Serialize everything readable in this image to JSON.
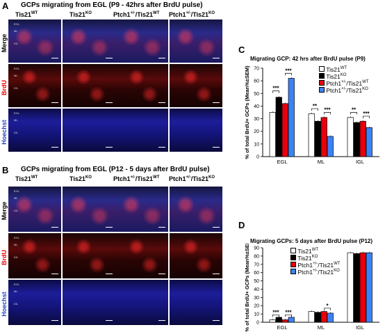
{
  "panel_a": {
    "letter": "A",
    "title": "GCPs migrating from EGL (P9 - 42hrs after BrdU pulse)",
    "columns": [
      {
        "base": "Tis21",
        "sup": "WT"
      },
      {
        "base": "Tis21",
        "sup": "KO"
      },
      {
        "base": "Ptch1",
        "sup": "+/-",
        "base2": "/Tis21",
        "sup2": "WT"
      },
      {
        "base": "Ptch1",
        "sup": "+/-",
        "base2": "/Tis21",
        "sup2": "KO"
      }
    ],
    "rows": [
      "Merge",
      "BrdU",
      "Hoechst"
    ],
    "layers": [
      "EGL",
      "ML",
      "IGL"
    ],
    "row_colors": {
      "Merge": "#000000",
      "BrdU": "#e8000b",
      "Hoechst": "#1f3fbf"
    }
  },
  "panel_b": {
    "letter": "B",
    "title": "GCPs migrating from EGL (P12 - 5 days after BrdU pulse)",
    "columns": [
      {
        "base": "Tis21",
        "sup": "WT"
      },
      {
        "base": "Tis21",
        "sup": "KO"
      },
      {
        "base": "Ptch1",
        "sup": "+/-",
        "base2": "/Tis21",
        "sup2": "WT"
      },
      {
        "base": "Ptch1",
        "sup": "+/-",
        "base2": "/Tis21",
        "sup2": "KO"
      }
    ],
    "rows": [
      "Merge",
      "BrdU",
      "Hoechst"
    ],
    "layers": [
      "EGL",
      "ML",
      "IGL"
    ]
  },
  "legend": [
    {
      "base": "Tis21",
      "sup": "WT",
      "color": "#ffffff"
    },
    {
      "base": "Tis21",
      "sup": "KO",
      "color": "#000000"
    },
    {
      "base": "Ptch1",
      "sup": "+/-",
      "base2": "/Tis21",
      "sup2": "WT",
      "color": "#e8000b"
    },
    {
      "base": "Ptch1",
      "sup": "+/-",
      "base2": "/Tis21",
      "sup2": "KO",
      "color": "#3b82f6"
    }
  ],
  "chart_data": [
    {
      "letter": "C",
      "type": "bar",
      "title": "Migrating GCP: 42 hrs after BrdU pulse (P9)",
      "ylabel": "% of total BrdU+ GCPs (Mean%±SEM)",
      "ylim": [
        0,
        70
      ],
      "yticks": [
        "0",
        "10",
        "20",
        "30",
        "40",
        "50",
        "60",
        "70"
      ],
      "categories": [
        "EGL",
        "ML",
        "IGL"
      ],
      "series": [
        {
          "name": "Tis21WT",
          "values": [
            35,
            34,
            31
          ]
        },
        {
          "name": "Tis21KO",
          "values": [
            47,
            28,
            27
          ]
        },
        {
          "name": "Ptch1+/-/Tis21WT",
          "values": [
            42,
            31,
            28
          ]
        },
        {
          "name": "Ptch1+/-/Tis21KO",
          "values": [
            62,
            16,
            23
          ]
        }
      ],
      "significance": [
        {
          "cat": 0,
          "from": 0,
          "to": 1,
          "label": "***",
          "y": 52
        },
        {
          "cat": 0,
          "from": 2,
          "to": 3,
          "label": "***",
          "y": 66
        },
        {
          "cat": 1,
          "from": 0,
          "to": 1,
          "label": "**",
          "y": 38
        },
        {
          "cat": 1,
          "from": 2,
          "to": 3,
          "label": "***",
          "y": 35
        },
        {
          "cat": 2,
          "from": 0,
          "to": 1,
          "label": "**",
          "y": 35
        },
        {
          "cat": 2,
          "from": 2,
          "to": 3,
          "label": "***",
          "y": 32
        }
      ]
    },
    {
      "letter": "D",
      "type": "bar",
      "title": "Migrating GCPs: 5 days after BrdU pulse (P12)",
      "ylabel": "% of total BrdU+ GCPs (Mean%±SEM)",
      "ylim": [
        0,
        90
      ],
      "yticks": [
        "0",
        "10",
        "20",
        "30",
        "40",
        "50",
        "60",
        "70",
        "80",
        "90"
      ],
      "categories": [
        "EGL",
        "ML",
        "IGL"
      ],
      "series": [
        {
          "name": "Tis21WT",
          "values": [
            3,
            13,
            84
          ]
        },
        {
          "name": "Tis21KO",
          "values": [
            6,
            12,
            83
          ]
        },
        {
          "name": "Ptch1+/-/Tis21WT",
          "values": [
            3,
            13,
            84
          ]
        },
        {
          "name": "Ptch1+/-/Tis21KO",
          "values": [
            6,
            11,
            84
          ]
        }
      ],
      "significance": [
        {
          "cat": 0,
          "from": 0,
          "to": 1,
          "label": "***",
          "y": 9
        },
        {
          "cat": 0,
          "from": 2,
          "to": 3,
          "label": "***",
          "y": 9
        },
        {
          "cat": 1,
          "from": 2,
          "to": 3,
          "label": "*",
          "y": 17
        }
      ]
    }
  ]
}
